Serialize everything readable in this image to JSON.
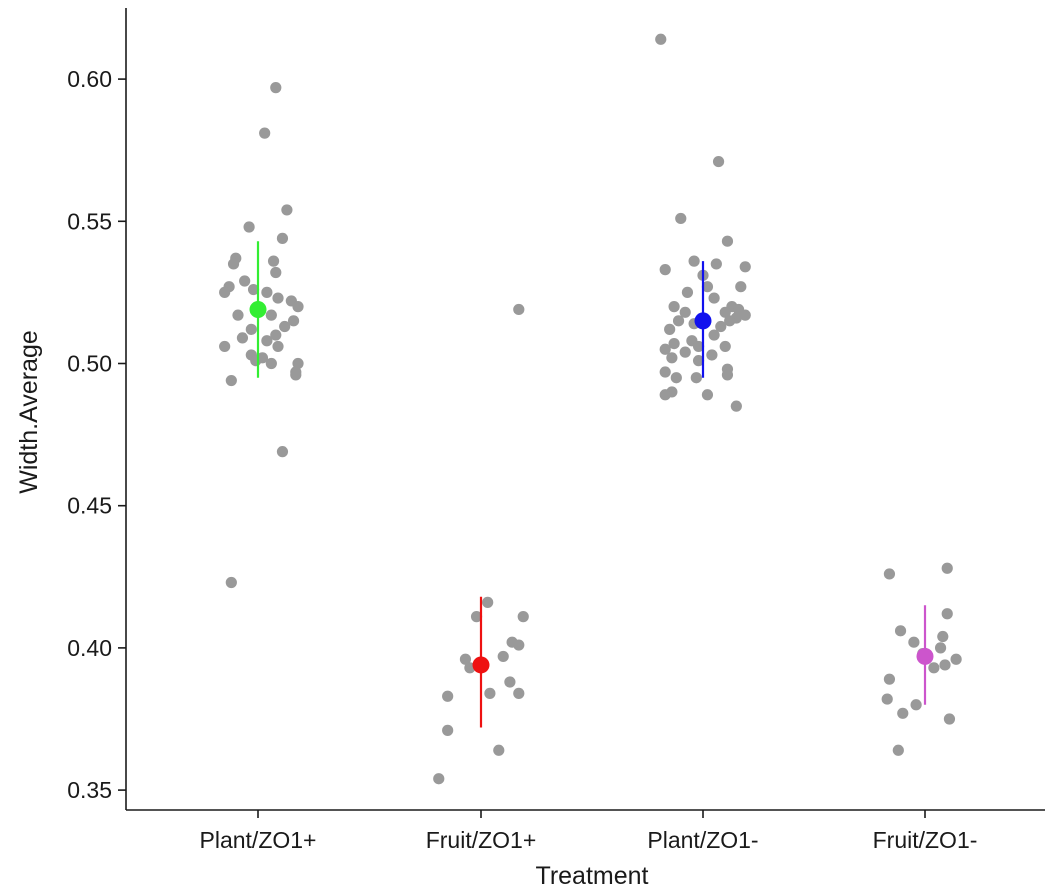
{
  "chart_data": {
    "type": "scatter",
    "xlabel": "Treatment",
    "ylabel": "Width.Average",
    "categories": [
      "Plant/ZO1+",
      "Fruit/ZO1+",
      "Plant/ZO1-",
      "Fruit/ZO1-"
    ],
    "ylim": [
      0.343,
      0.625
    ],
    "yticks": [
      0.35,
      0.4,
      0.45,
      0.5,
      0.55,
      0.6
    ],
    "ytick_labels": [
      "0.35",
      "0.40",
      "0.45",
      "0.50",
      "0.55",
      "0.60"
    ],
    "grid": false,
    "legend": "none",
    "colors": {
      "points": "#999999",
      "Plant/ZO1+": "#33ee33",
      "Fruit/ZO1+": "#ee1111",
      "Plant/ZO1-": "#1111ee",
      "Fruit/ZO1-": "#cc55cc"
    },
    "summaries": [
      {
        "category": "Plant/ZO1+",
        "mean": 0.519,
        "lower": 0.495,
        "upper": 0.543
      },
      {
        "category": "Fruit/ZO1+",
        "mean": 0.394,
        "lower": 0.372,
        "upper": 0.418
      },
      {
        "category": "Plant/ZO1-",
        "mean": 0.515,
        "lower": 0.495,
        "upper": 0.536
      },
      {
        "category": "Fruit/ZO1-",
        "mean": 0.397,
        "lower": 0.38,
        "upper": 0.415
      }
    ],
    "points": [
      {
        "category": "Plant/ZO1+",
        "jitter": 0.08,
        "y": 0.597
      },
      {
        "category": "Plant/ZO1+",
        "jitter": 0.03,
        "y": 0.581
      },
      {
        "category": "Plant/ZO1+",
        "jitter": 0.13,
        "y": 0.554
      },
      {
        "category": "Plant/ZO1+",
        "jitter": -0.04,
        "y": 0.548
      },
      {
        "category": "Plant/ZO1+",
        "jitter": 0.11,
        "y": 0.544
      },
      {
        "category": "Plant/ZO1+",
        "jitter": -0.1,
        "y": 0.537
      },
      {
        "category": "Plant/ZO1+",
        "jitter": -0.11,
        "y": 0.535
      },
      {
        "category": "Plant/ZO1+",
        "jitter": 0.07,
        "y": 0.536
      },
      {
        "category": "Plant/ZO1+",
        "jitter": 0.08,
        "y": 0.532
      },
      {
        "category": "Plant/ZO1+",
        "jitter": -0.06,
        "y": 0.529
      },
      {
        "category": "Plant/ZO1+",
        "jitter": -0.13,
        "y": 0.527
      },
      {
        "category": "Plant/ZO1+",
        "jitter": -0.15,
        "y": 0.525
      },
      {
        "category": "Plant/ZO1+",
        "jitter": -0.02,
        "y": 0.526
      },
      {
        "category": "Plant/ZO1+",
        "jitter": 0.04,
        "y": 0.525
      },
      {
        "category": "Plant/ZO1+",
        "jitter": 0.09,
        "y": 0.523
      },
      {
        "category": "Plant/ZO1+",
        "jitter": 0.15,
        "y": 0.522
      },
      {
        "category": "Plant/ZO1+",
        "jitter": 0.18,
        "y": 0.52
      },
      {
        "category": "Plant/ZO1+",
        "jitter": 0.0,
        "y": 0.519
      },
      {
        "category": "Plant/ZO1+",
        "jitter": 0.06,
        "y": 0.517
      },
      {
        "category": "Plant/ZO1+",
        "jitter": -0.09,
        "y": 0.517
      },
      {
        "category": "Plant/ZO1+",
        "jitter": 0.16,
        "y": 0.515
      },
      {
        "category": "Plant/ZO1+",
        "jitter": 0.12,
        "y": 0.513
      },
      {
        "category": "Plant/ZO1+",
        "jitter": -0.03,
        "y": 0.512
      },
      {
        "category": "Plant/ZO1+",
        "jitter": 0.08,
        "y": 0.51
      },
      {
        "category": "Plant/ZO1+",
        "jitter": -0.07,
        "y": 0.509
      },
      {
        "category": "Plant/ZO1+",
        "jitter": 0.04,
        "y": 0.508
      },
      {
        "category": "Plant/ZO1+",
        "jitter": -0.15,
        "y": 0.506
      },
      {
        "category": "Plant/ZO1+",
        "jitter": 0.09,
        "y": 0.506
      },
      {
        "category": "Plant/ZO1+",
        "jitter": -0.03,
        "y": 0.503
      },
      {
        "category": "Plant/ZO1+",
        "jitter": 0.02,
        "y": 0.502
      },
      {
        "category": "Plant/ZO1+",
        "jitter": -0.01,
        "y": 0.501
      },
      {
        "category": "Plant/ZO1+",
        "jitter": 0.06,
        "y": 0.5
      },
      {
        "category": "Plant/ZO1+",
        "jitter": 0.18,
        "y": 0.5
      },
      {
        "category": "Plant/ZO1+",
        "jitter": 0.17,
        "y": 0.497
      },
      {
        "category": "Plant/ZO1+",
        "jitter": -0.12,
        "y": 0.494
      },
      {
        "category": "Plant/ZO1+",
        "jitter": 0.17,
        "y": 0.496
      },
      {
        "category": "Plant/ZO1+",
        "jitter": 0.11,
        "y": 0.469
      },
      {
        "category": "Plant/ZO1+",
        "jitter": -0.12,
        "y": 0.423
      },
      {
        "category": "Fruit/ZO1+",
        "jitter": 0.17,
        "y": 0.519
      },
      {
        "category": "Fruit/ZO1+",
        "jitter": 0.03,
        "y": 0.416
      },
      {
        "category": "Fruit/ZO1+",
        "jitter": -0.02,
        "y": 0.411
      },
      {
        "category": "Fruit/ZO1+",
        "jitter": 0.19,
        "y": 0.411
      },
      {
        "category": "Fruit/ZO1+",
        "jitter": 0.14,
        "y": 0.402
      },
      {
        "category": "Fruit/ZO1+",
        "jitter": 0.17,
        "y": 0.401
      },
      {
        "category": "Fruit/ZO1+",
        "jitter": 0.1,
        "y": 0.397
      },
      {
        "category": "Fruit/ZO1+",
        "jitter": -0.07,
        "y": 0.396
      },
      {
        "category": "Fruit/ZO1+",
        "jitter": -0.05,
        "y": 0.393
      },
      {
        "category": "Fruit/ZO1+",
        "jitter": 0.13,
        "y": 0.388
      },
      {
        "category": "Fruit/ZO1+",
        "jitter": 0.04,
        "y": 0.384
      },
      {
        "category": "Fruit/ZO1+",
        "jitter": 0.17,
        "y": 0.384
      },
      {
        "category": "Fruit/ZO1+",
        "jitter": -0.15,
        "y": 0.383
      },
      {
        "category": "Fruit/ZO1+",
        "jitter": -0.15,
        "y": 0.371
      },
      {
        "category": "Fruit/ZO1+",
        "jitter": 0.08,
        "y": 0.364
      },
      {
        "category": "Fruit/ZO1+",
        "jitter": -0.19,
        "y": 0.354
      },
      {
        "category": "Plant/ZO1-",
        "jitter": -0.19,
        "y": 0.614
      },
      {
        "category": "Plant/ZO1-",
        "jitter": 0.07,
        "y": 0.571
      },
      {
        "category": "Plant/ZO1-",
        "jitter": -0.1,
        "y": 0.551
      },
      {
        "category": "Plant/ZO1-",
        "jitter": 0.11,
        "y": 0.543
      },
      {
        "category": "Plant/ZO1-",
        "jitter": -0.04,
        "y": 0.536
      },
      {
        "category": "Plant/ZO1-",
        "jitter": 0.06,
        "y": 0.535
      },
      {
        "category": "Plant/ZO1-",
        "jitter": 0.19,
        "y": 0.534
      },
      {
        "category": "Plant/ZO1-",
        "jitter": -0.17,
        "y": 0.533
      },
      {
        "category": "Plant/ZO1-",
        "jitter": 0.0,
        "y": 0.531
      },
      {
        "category": "Plant/ZO1-",
        "jitter": 0.02,
        "y": 0.527
      },
      {
        "category": "Plant/ZO1-",
        "jitter": 0.17,
        "y": 0.527
      },
      {
        "category": "Plant/ZO1-",
        "jitter": -0.07,
        "y": 0.525
      },
      {
        "category": "Plant/ZO1-",
        "jitter": 0.05,
        "y": 0.523
      },
      {
        "category": "Plant/ZO1-",
        "jitter": -0.13,
        "y": 0.52
      },
      {
        "category": "Plant/ZO1-",
        "jitter": 0.13,
        "y": 0.52
      },
      {
        "category": "Plant/ZO1-",
        "jitter": 0.16,
        "y": 0.519
      },
      {
        "category": "Plant/ZO1-",
        "jitter": -0.08,
        "y": 0.518
      },
      {
        "category": "Plant/ZO1-",
        "jitter": 0.1,
        "y": 0.518
      },
      {
        "category": "Plant/ZO1-",
        "jitter": 0.19,
        "y": 0.517
      },
      {
        "category": "Plant/ZO1-",
        "jitter": 0.15,
        "y": 0.516
      },
      {
        "category": "Plant/ZO1-",
        "jitter": -0.11,
        "y": 0.515
      },
      {
        "category": "Plant/ZO1-",
        "jitter": 0.12,
        "y": 0.515
      },
      {
        "category": "Plant/ZO1-",
        "jitter": -0.04,
        "y": 0.514
      },
      {
        "category": "Plant/ZO1-",
        "jitter": 0.08,
        "y": 0.513
      },
      {
        "category": "Plant/ZO1-",
        "jitter": -0.15,
        "y": 0.512
      },
      {
        "category": "Plant/ZO1-",
        "jitter": 0.05,
        "y": 0.51
      },
      {
        "category": "Plant/ZO1-",
        "jitter": -0.05,
        "y": 0.508
      },
      {
        "category": "Plant/ZO1-",
        "jitter": -0.13,
        "y": 0.507
      },
      {
        "category": "Plant/ZO1-",
        "jitter": -0.02,
        "y": 0.506
      },
      {
        "category": "Plant/ZO1-",
        "jitter": 0.1,
        "y": 0.506
      },
      {
        "category": "Plant/ZO1-",
        "jitter": -0.17,
        "y": 0.505
      },
      {
        "category": "Plant/ZO1-",
        "jitter": -0.08,
        "y": 0.504
      },
      {
        "category": "Plant/ZO1-",
        "jitter": 0.04,
        "y": 0.503
      },
      {
        "category": "Plant/ZO1-",
        "jitter": -0.14,
        "y": 0.502
      },
      {
        "category": "Plant/ZO1-",
        "jitter": -0.02,
        "y": 0.501
      },
      {
        "category": "Plant/ZO1-",
        "jitter": -0.17,
        "y": 0.497
      },
      {
        "category": "Plant/ZO1-",
        "jitter": 0.11,
        "y": 0.498
      },
      {
        "category": "Plant/ZO1-",
        "jitter": 0.11,
        "y": 0.496
      },
      {
        "category": "Plant/ZO1-",
        "jitter": -0.12,
        "y": 0.495
      },
      {
        "category": "Plant/ZO1-",
        "jitter": -0.03,
        "y": 0.495
      },
      {
        "category": "Plant/ZO1-",
        "jitter": -0.14,
        "y": 0.49
      },
      {
        "category": "Plant/ZO1-",
        "jitter": -0.17,
        "y": 0.489
      },
      {
        "category": "Plant/ZO1-",
        "jitter": 0.02,
        "y": 0.489
      },
      {
        "category": "Plant/ZO1-",
        "jitter": 0.15,
        "y": 0.485
      },
      {
        "category": "Fruit/ZO1-",
        "jitter": 0.1,
        "y": 0.428
      },
      {
        "category": "Fruit/ZO1-",
        "jitter": -0.16,
        "y": 0.426
      },
      {
        "category": "Fruit/ZO1-",
        "jitter": 0.1,
        "y": 0.412
      },
      {
        "category": "Fruit/ZO1-",
        "jitter": -0.11,
        "y": 0.406
      },
      {
        "category": "Fruit/ZO1-",
        "jitter": 0.08,
        "y": 0.404
      },
      {
        "category": "Fruit/ZO1-",
        "jitter": -0.05,
        "y": 0.402
      },
      {
        "category": "Fruit/ZO1-",
        "jitter": 0.07,
        "y": 0.4
      },
      {
        "category": "Fruit/ZO1-",
        "jitter": -0.01,
        "y": 0.398
      },
      {
        "category": "Fruit/ZO1-",
        "jitter": 0.14,
        "y": 0.396
      },
      {
        "category": "Fruit/ZO1-",
        "jitter": 0.09,
        "y": 0.394
      },
      {
        "category": "Fruit/ZO1-",
        "jitter": 0.04,
        "y": 0.393
      },
      {
        "category": "Fruit/ZO1-",
        "jitter": -0.16,
        "y": 0.389
      },
      {
        "category": "Fruit/ZO1-",
        "jitter": -0.17,
        "y": 0.382
      },
      {
        "category": "Fruit/ZO1-",
        "jitter": -0.04,
        "y": 0.38
      },
      {
        "category": "Fruit/ZO1-",
        "jitter": -0.1,
        "y": 0.377
      },
      {
        "category": "Fruit/ZO1-",
        "jitter": 0.11,
        "y": 0.375
      },
      {
        "category": "Fruit/ZO1-",
        "jitter": -0.12,
        "y": 0.364
      }
    ]
  }
}
